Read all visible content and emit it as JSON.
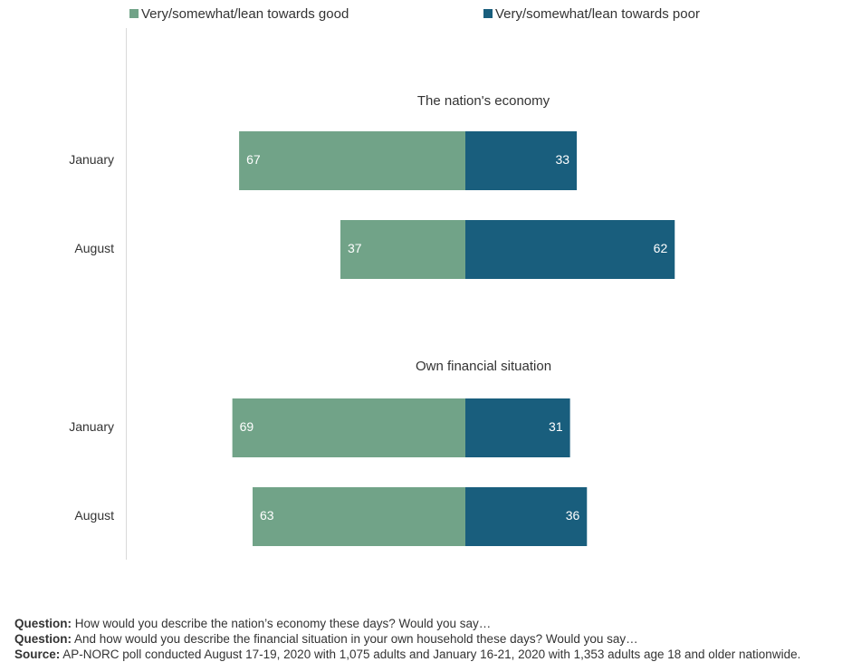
{
  "legend": {
    "good_label": "Very/somewhat/lean towards good",
    "poor_label": "Very/somewhat/lean towards poor"
  },
  "colors": {
    "good": "#71a388",
    "poor": "#195e7d",
    "axis": "#d9d9d9"
  },
  "chart_data": [
    {
      "type": "bar",
      "title": "The nation's economy",
      "categories": [
        "January",
        "August"
      ],
      "series": [
        {
          "name": "Very/somewhat/lean towards good",
          "values": [
            67,
            37
          ]
        },
        {
          "name": "Very/somewhat/lean towards poor",
          "values": [
            33,
            62
          ]
        }
      ]
    },
    {
      "type": "bar",
      "title": "Own financial situation",
      "categories": [
        "January",
        "August"
      ],
      "series": [
        {
          "name": "Very/somewhat/lean towards good",
          "values": [
            69,
            63
          ]
        },
        {
          "name": "Very/somewhat/lean towards poor",
          "values": [
            31,
            36
          ]
        }
      ]
    }
  ],
  "notes": [
    {
      "label": "Question:",
      "text": "How would you describe the nation’s economy these days? Would you say…"
    },
    {
      "label": "Question:",
      "text": "And how would you describe the financial situation in your own household these days? Would you say…"
    },
    {
      "label": "Source:",
      "text": "AP-NORC poll conducted August 17-19, 2020 with 1,075 adults and January 16-21, 2020 with 1,353 adults age 18 and older nationwide."
    }
  ]
}
